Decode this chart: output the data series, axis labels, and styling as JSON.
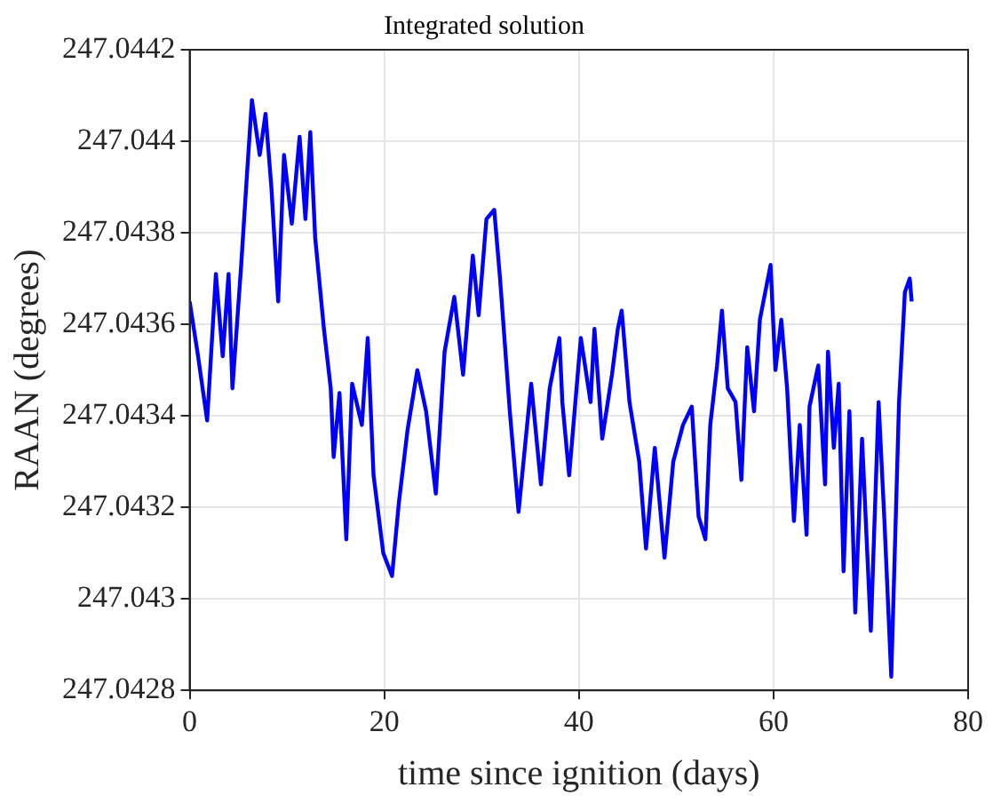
{
  "chart_data": {
    "type": "line",
    "title": "Integrated solution",
    "xlabel": "time since ignition (days)",
    "ylabel": "RAAN (degrees)",
    "xlim": [
      0,
      80
    ],
    "xticks": [
      0,
      20,
      40,
      60,
      80
    ],
    "ylim": [
      247.0428,
      247.0442
    ],
    "yticks": [
      247.0428,
      247.043,
      247.0432,
      247.0434,
      247.0436,
      247.0438,
      247.044,
      247.0442
    ],
    "grid": true,
    "marker": "none",
    "line_style": "solid",
    "series": [
      {
        "color": "#0000ff",
        "x": [
          0,
          0.8,
          1.8,
          2.7,
          3.4,
          4.0,
          4.4,
          5.3,
          5.9,
          6.4,
          7.2,
          7.8,
          8.4,
          9.1,
          9.7,
          10.5,
          11.3,
          11.9,
          12.4,
          12.9,
          13.8,
          14.5,
          14.8,
          15.4,
          16.1,
          16.7,
          17.7,
          18.3,
          18.9,
          19.9,
          20.8,
          21.5,
          22.4,
          23.4,
          24.3,
          25.3,
          26.2,
          27.2,
          28.1,
          29.1,
          29.7,
          30.5,
          31.3,
          31.9,
          32.9,
          33.8,
          35.1,
          36.1,
          37.0,
          38.0,
          38.3,
          39.0,
          40.2,
          41.2,
          41.6,
          42.4,
          43.4,
          44.0,
          44.4,
          45.2,
          46.2,
          46.9,
          47.8,
          48.8,
          49.7,
          50.7,
          51.6,
          52.3,
          53.0,
          53.5,
          54.2,
          54.7,
          55.3,
          56.1,
          56.7,
          57.3,
          58.0,
          58.6,
          59.7,
          60.2,
          60.8,
          61.4,
          62.1,
          62.7,
          63.4,
          63.7,
          64.6,
          65.3,
          65.6,
          66.2,
          66.7,
          67.2,
          67.8,
          68.4,
          69.1,
          70.0,
          70.8,
          71.4,
          72.1,
          72.9,
          73.5,
          74.0,
          74.2
        ],
        "values": [
          247.04365,
          247.04354,
          247.04339,
          247.04371,
          247.04353,
          247.04371,
          247.04346,
          247.04373,
          247.04393,
          247.04409,
          247.04397,
          247.04406,
          247.0439,
          247.04365,
          247.04397,
          247.04382,
          247.04401,
          247.04383,
          247.04402,
          247.04379,
          247.04359,
          247.04346,
          247.04331,
          247.04345,
          247.04313,
          247.04347,
          247.04338,
          247.04357,
          247.04327,
          247.0431,
          247.04305,
          247.04321,
          247.04337,
          247.0435,
          247.04341,
          247.04323,
          247.04354,
          247.04366,
          247.04349,
          247.04375,
          247.04362,
          247.04383,
          247.04385,
          247.0437,
          247.04341,
          247.04319,
          247.04347,
          247.04325,
          247.04346,
          247.04357,
          247.04343,
          247.04327,
          247.04357,
          247.04343,
          247.04359,
          247.04335,
          247.04349,
          247.04359,
          247.04363,
          247.04343,
          247.0433,
          247.04311,
          247.04333,
          247.04309,
          247.0433,
          247.04338,
          247.04342,
          247.04318,
          247.04313,
          247.04338,
          247.04351,
          247.04363,
          247.04346,
          247.04343,
          247.04326,
          247.04355,
          247.04341,
          247.04361,
          247.04373,
          247.0435,
          247.04361,
          247.04346,
          247.04317,
          247.04338,
          247.04314,
          247.04342,
          247.04351,
          247.04325,
          247.04354,
          247.04333,
          247.04347,
          247.04306,
          247.04341,
          247.04297,
          247.04335,
          247.04293,
          247.04343,
          247.04317,
          247.04283,
          247.04343,
          247.04367,
          247.0437,
          247.04365
        ]
      }
    ]
  }
}
